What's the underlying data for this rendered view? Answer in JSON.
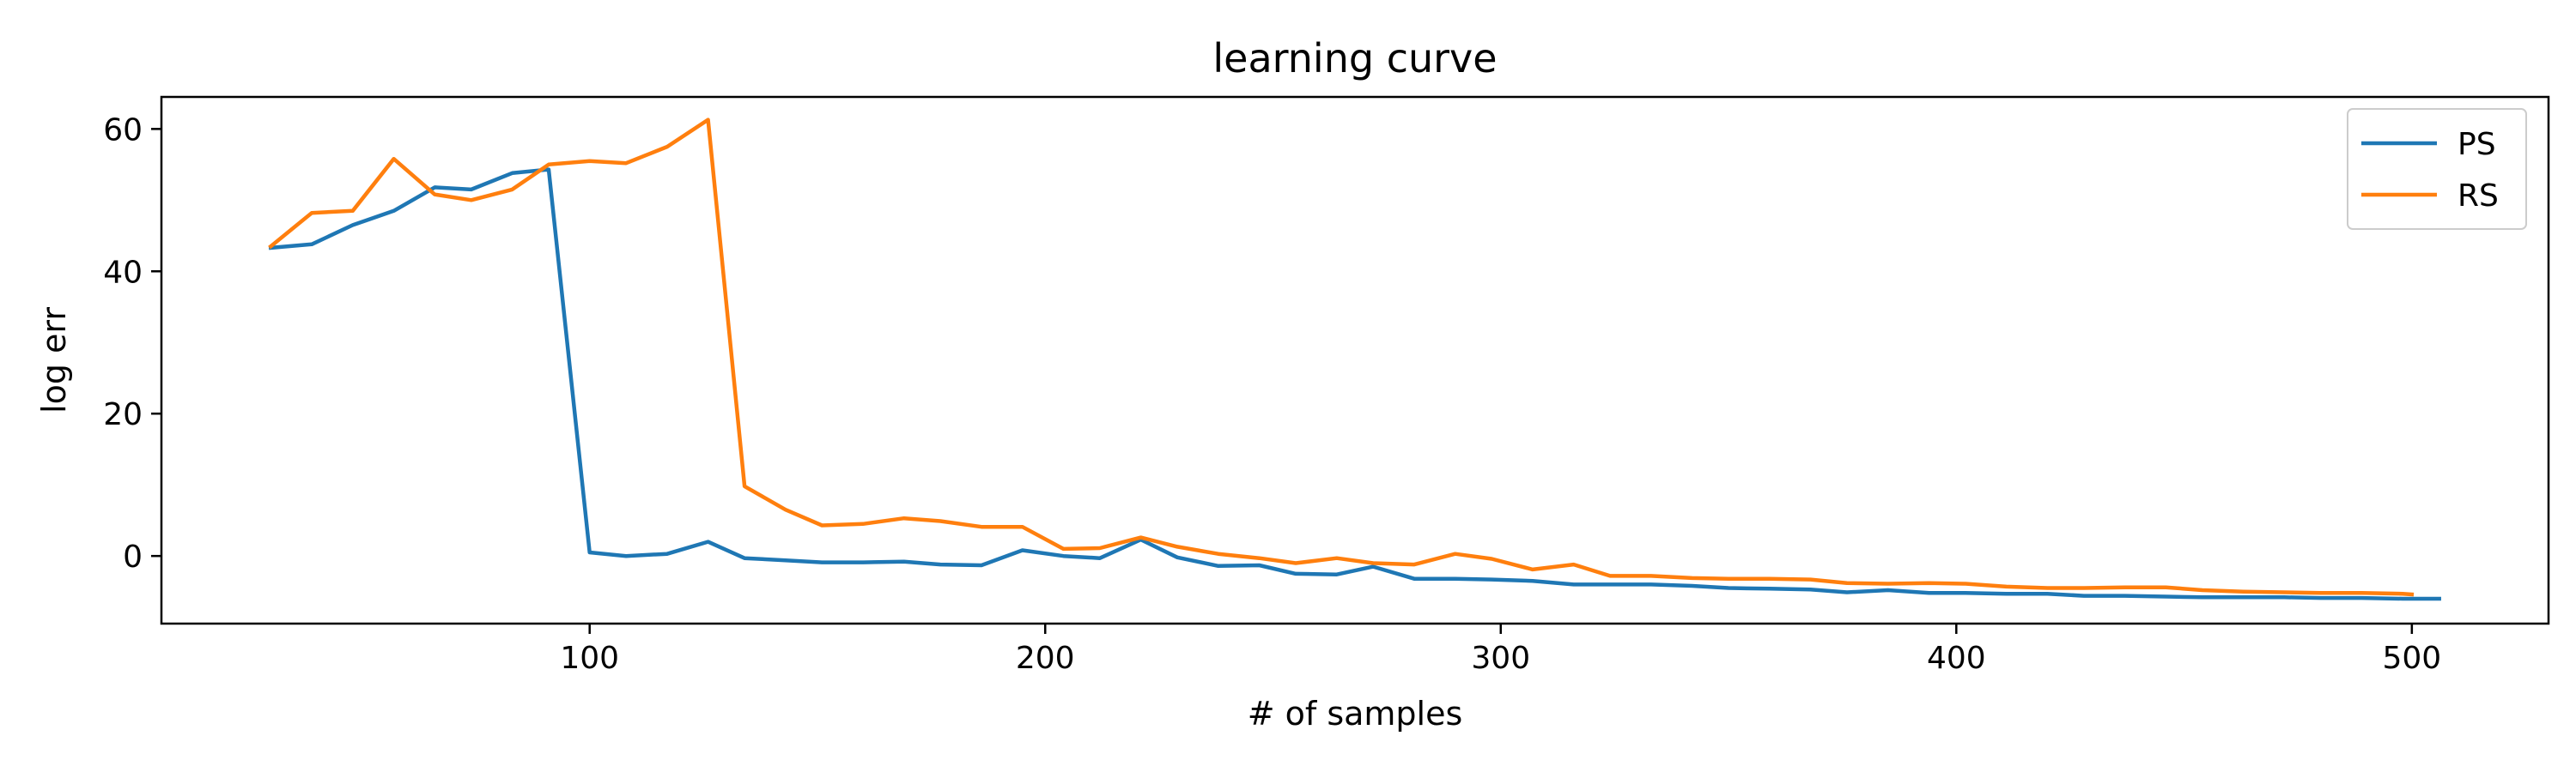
{
  "chart_data": {
    "type": "line",
    "title": "learning curve",
    "xlabel": "# of samples",
    "ylabel": "log err",
    "xlim": [
      6,
      530
    ],
    "ylim": [
      -9.5,
      64.5
    ],
    "xticks": [
      100,
      200,
      300,
      400,
      500
    ],
    "yticks": [
      0,
      20,
      40,
      60
    ],
    "xtick_labels": [
      "100",
      "200",
      "300",
      "400",
      "500"
    ],
    "ytick_labels": [
      "0",
      "20",
      "40",
      "60"
    ],
    "grid": false,
    "legend_position": "top-right",
    "series": [
      {
        "name": "PS",
        "color": "#1f77b4",
        "x": [
          30,
          39,
          48,
          57,
          66,
          74,
          83,
          91,
          100,
          108,
          117,
          126,
          134,
          143,
          151,
          160,
          169,
          177,
          186,
          195,
          204,
          212,
          221,
          229,
          238,
          247,
          255,
          264,
          272,
          281,
          290,
          298,
          307,
          316,
          324,
          333,
          342,
          350,
          359,
          368,
          376,
          385,
          394,
          402,
          411,
          420,
          428,
          437,
          446,
          454,
          463,
          472,
          480,
          489,
          498,
          506
        ],
        "values": [
          43.3,
          43.8,
          46.5,
          48.5,
          51.8,
          51.5,
          53.8,
          54.3,
          0.5,
          0.0,
          0.3,
          2.0,
          -0.3,
          -0.6,
          -0.9,
          -0.9,
          -0.8,
          -1.2,
          -1.3,
          0.8,
          0.0,
          -0.3,
          2.3,
          -0.2,
          -1.4,
          -1.3,
          -2.5,
          -2.6,
          -1.5,
          -3.2,
          -3.2,
          -3.3,
          -3.5,
          -4.0,
          -4.0,
          -4.0,
          -4.2,
          -4.5,
          -4.6,
          -4.7,
          -5.1,
          -4.8,
          -5.2,
          -5.2,
          -5.3,
          -5.3,
          -5.6,
          -5.6,
          -5.7,
          -5.8,
          -5.8,
          -5.8,
          -5.9,
          -5.9,
          -6.0,
          -6.0
        ]
      },
      {
        "name": "RS",
        "color": "#ff7f0e",
        "x": [
          30,
          39,
          48,
          57,
          66,
          74,
          83,
          91,
          100,
          108,
          117,
          126,
          134,
          143,
          151,
          160,
          169,
          177,
          186,
          195,
          204,
          212,
          221,
          229,
          238,
          247,
          255,
          264,
          272,
          281,
          290,
          298,
          307,
          316,
          324,
          333,
          342,
          350,
          359,
          368,
          376,
          385,
          394,
          402,
          411,
          420,
          428,
          437,
          446,
          454,
          463,
          472,
          480,
          489,
          498,
          500
        ],
        "values": [
          43.5,
          48.2,
          48.5,
          55.8,
          50.8,
          50.0,
          51.5,
          55.0,
          55.5,
          55.2,
          57.5,
          61.3,
          9.8,
          6.5,
          4.3,
          4.5,
          5.3,
          4.9,
          4.1,
          4.1,
          1.0,
          1.1,
          2.6,
          1.3,
          0.3,
          -0.3,
          -1.0,
          -0.3,
          -1.0,
          -1.2,
          0.3,
          -0.4,
          -1.9,
          -1.2,
          -2.8,
          -2.8,
          -3.1,
          -3.2,
          -3.2,
          -3.3,
          -3.8,
          -3.9,
          -3.8,
          -3.9,
          -4.3,
          -4.5,
          -4.5,
          -4.4,
          -4.4,
          -4.8,
          -5.0,
          -5.1,
          -5.2,
          -5.2,
          -5.3,
          -5.4
        ]
      }
    ]
  }
}
